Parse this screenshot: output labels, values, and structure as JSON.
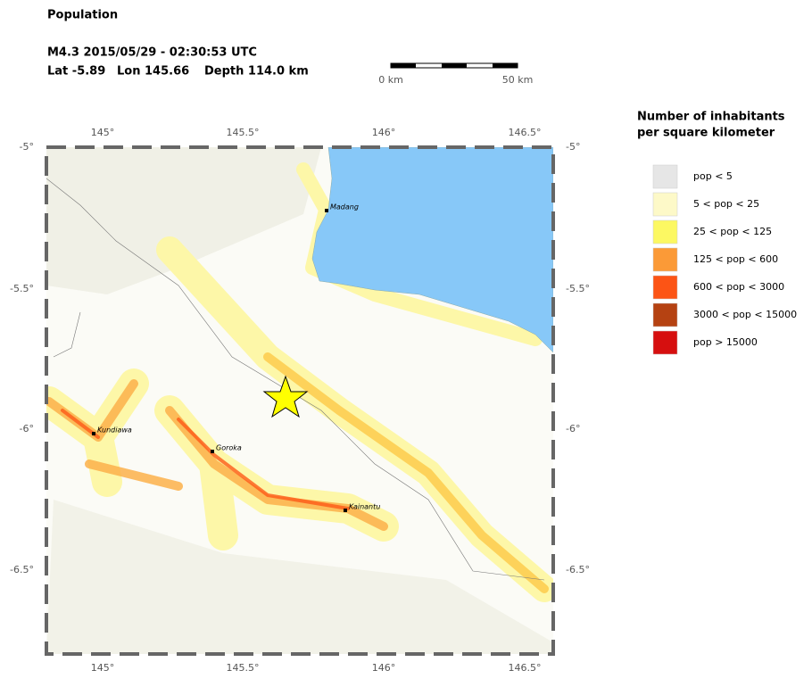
{
  "header": {
    "title": "Population",
    "event": "M4.3  2015/05/29 - 02:30:53 UTC",
    "lat": "Lat -5.89",
    "lon": "Lon 145.66",
    "depth": "Depth 114.0 km"
  },
  "scale_bar": {
    "start": "0 km",
    "end": "50 km"
  },
  "map": {
    "x_ticks": [
      "145°",
      "145.5°",
      "146°",
      "146.5°"
    ],
    "y_ticks": [
      "-5°",
      "-5.5°",
      "-6°",
      "-6.5°"
    ],
    "cities": [
      "Madang",
      "Kundiawa",
      "Goroka",
      "Kainantu"
    ]
  },
  "legend": {
    "title": [
      "Number of inhabitants",
      "per square kilometer"
    ],
    "items": [
      {
        "label": "pop < 5",
        "color": "#e6e6e6"
      },
      {
        "label": "5 < pop < 25",
        "color": "#fdf9c8"
      },
      {
        "label": "25 < pop < 125",
        "color": "#fcf862"
      },
      {
        "label": "125 < pop < 600",
        "color": "#fb9a37"
      },
      {
        "label": "600 < pop < 3000",
        "color": "#fc5415"
      },
      {
        "label": "3000 < pop < 15000",
        "color": "#b54212"
      },
      {
        "label": "pop > 15000",
        "color": "#d60f0f"
      }
    ]
  }
}
